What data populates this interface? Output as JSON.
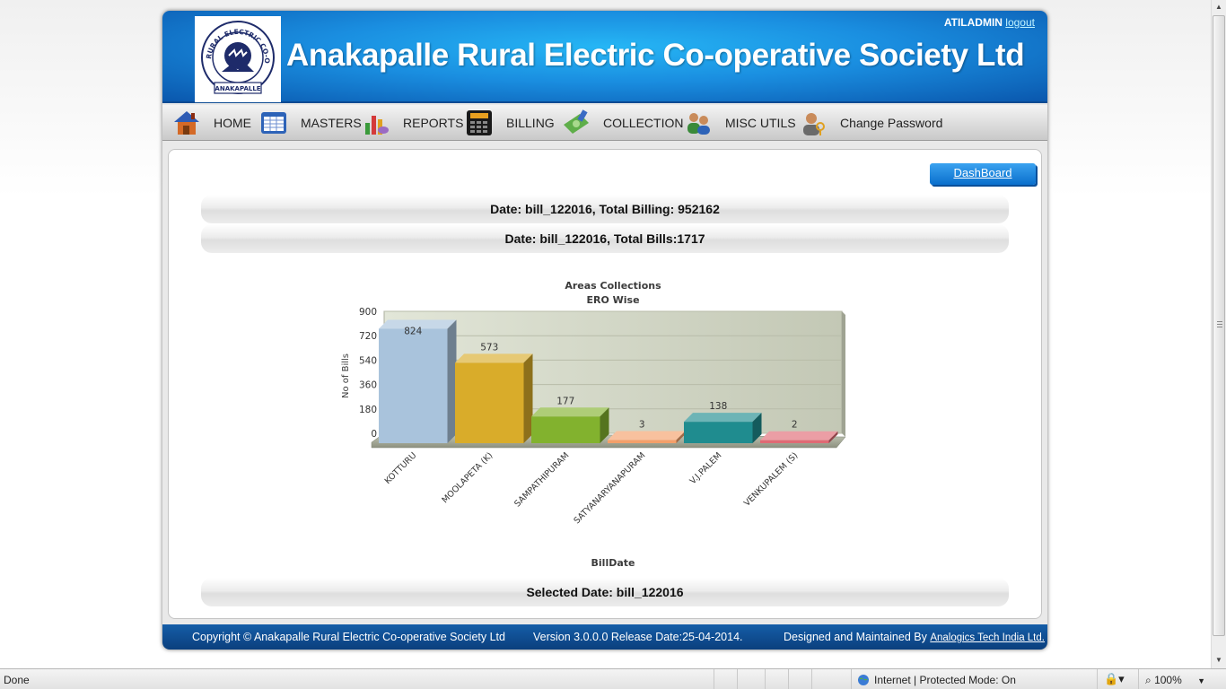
{
  "header": {
    "title": "Anakapalle Rural Electric Co-operative Society Ltd",
    "user": "ATILADMIN",
    "logout": "logout",
    "logo_text_top": "RURAL ELECTRIC CO-OPERATIVE SOCIETY",
    "logo_text_bottom": "ANAKAPALLE"
  },
  "nav": {
    "items": [
      {
        "label": "HOME",
        "icon": "home-icon"
      },
      {
        "label": "MASTERS",
        "icon": "masters-table-icon"
      },
      {
        "label": "REPORTS",
        "icon": "reports-chart-icon"
      },
      {
        "label": "BILLING",
        "icon": "billing-calculator-icon"
      },
      {
        "label": "COLLECTION",
        "icon": "collection-money-icon"
      },
      {
        "label": "MISC UTILS",
        "icon": "misc-utils-users-icon"
      },
      {
        "label": "Change Password",
        "icon": "change-password-user-icon"
      }
    ]
  },
  "content": {
    "dashboard_button": "DashBoard",
    "billing_summary": "Date: bill_122016, Total Billing: 952162",
    "bills_summary": "Date: bill_122016, Total Bills:1717",
    "selected_date": "Selected Date: bill_122016"
  },
  "chart_data": {
    "type": "bar",
    "title": "Areas Collections",
    "subtitle": "ERO Wise",
    "xlabel": "BillDate",
    "ylabel": "No of Bills",
    "ylim": [
      0,
      900
    ],
    "yticks": [
      0,
      180,
      360,
      540,
      720,
      900
    ],
    "categories": [
      "KOTTURU",
      "MOOLAPETA (K)",
      "SAMPATHIPURAM",
      "SATYANARYANAPURAM",
      "V.J.PALEM",
      "VENKUPALEM (S)"
    ],
    "values": [
      824,
      573,
      177,
      3,
      138,
      2
    ],
    "colors": [
      "#a9c3dc",
      "#d9ac2a",
      "#82b22e",
      "#f4a06a",
      "#1f8c8f",
      "#e06a74"
    ],
    "grid": true,
    "legend": "none"
  },
  "footer": {
    "copyright": "Copyright © Anakapalle Rural Electric Co-operative Society Ltd",
    "version": "Version 3.0.0.0 Release Date:25-04-2014.",
    "designed_by": "Designed and Maintained By",
    "company": "Analogics Tech India Ltd."
  },
  "statusbar": {
    "status": "Done",
    "zone": "Internet | Protected Mode: On",
    "zoom": "100%"
  }
}
